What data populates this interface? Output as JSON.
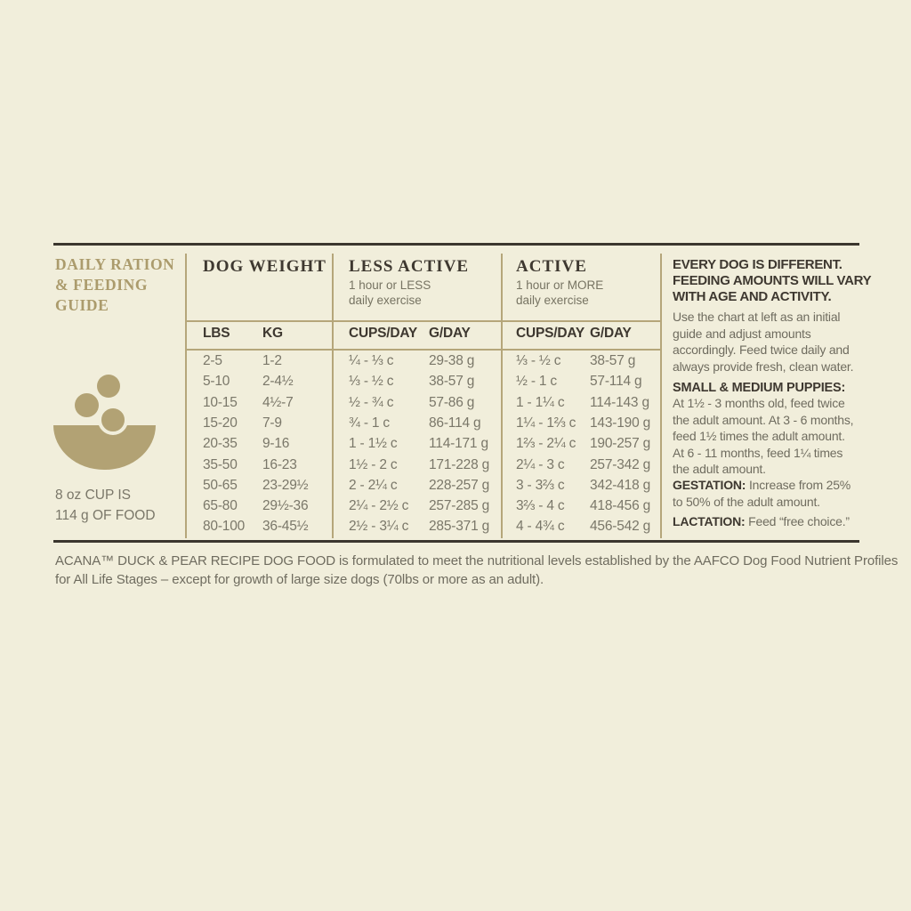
{
  "colors": {
    "background": "#f1eedb",
    "gold": "#ab9b6c",
    "gold_line": "#b5a67a",
    "dark": "#3e3830",
    "body_gray": "#7a7769"
  },
  "left_panel": {
    "title_lines": [
      "DAILY RATION",
      "& FEEDING",
      "GUIDE"
    ],
    "bowl_icon": "kibble-bowl-icon",
    "cup_note_lines": [
      "8 oz CUP IS",
      "114 g OF FOOD"
    ]
  },
  "table": {
    "groups": {
      "dog_weight": {
        "label": "DOG WEIGHT",
        "sub1": "LBS",
        "sub2": "KG"
      },
      "less_active": {
        "label": "LESS ACTIVE",
        "note_lines": [
          "1 hour or LESS",
          "daily exercise"
        ],
        "sub1": "CUPS/DAY",
        "sub2": "G/DAY"
      },
      "active": {
        "label": "ACTIVE",
        "note_lines": [
          "1 hour or MORE",
          "daily exercise"
        ],
        "sub1": "CUPS/DAY",
        "sub2": "G/DAY"
      }
    },
    "rows": [
      {
        "lbs": "2-5",
        "kg": "1-2",
        "la_cups": "¼ - ⅓ c",
        "la_g": "29-38 g",
        "a_cups": "⅓ - ½ c",
        "a_g": "38-57 g"
      },
      {
        "lbs": "5-10",
        "kg": "2-4½",
        "la_cups": "⅓ - ½ c",
        "la_g": "38-57 g",
        "a_cups": "½ - 1 c",
        "a_g": "57-114 g"
      },
      {
        "lbs": "10-15",
        "kg": "4½-7",
        "la_cups": "½ - ¾ c",
        "la_g": "57-86 g",
        "a_cups": "1 - 1¼ c",
        "a_g": "114-143 g"
      },
      {
        "lbs": "15-20",
        "kg": "7-9",
        "la_cups": "¾ - 1 c",
        "la_g": "86-114 g",
        "a_cups": "1¼ - 1⅔ c",
        "a_g": "143-190 g"
      },
      {
        "lbs": "20-35",
        "kg": "9-16",
        "la_cups": "1 - 1½ c",
        "la_g": "114-171 g",
        "a_cups": "1⅔ - 2¼ c",
        "a_g": "190-257 g"
      },
      {
        "lbs": "35-50",
        "kg": "16-23",
        "la_cups": "1½ - 2 c",
        "la_g": "171-228 g",
        "a_cups": "2¼ - 3 c",
        "a_g": "257-342 g"
      },
      {
        "lbs": "50-65",
        "kg": "23-29½",
        "la_cups": "2 - 2¼ c",
        "la_g": "228-257 g",
        "a_cups": "3 - 3⅔ c",
        "a_g": "342-418 g"
      },
      {
        "lbs": "65-80",
        "kg": "29½-36",
        "la_cups": "2¼ - 2½ c",
        "la_g": "257-285 g",
        "a_cups": "3⅔ - 4 c",
        "a_g": "418-456 g"
      },
      {
        "lbs": "80-100",
        "kg": "36-45½",
        "la_cups": "2½ - 3¼ c",
        "la_g": "285-371 g",
        "a_cups": "4 - 4¾ c",
        "a_g": "456-542 g"
      }
    ]
  },
  "info_panel": {
    "heading_lines": [
      "EVERY DOG IS DIFFERENT.",
      "FEEDING AMOUNTS WILL VARY",
      "WITH AGE AND ACTIVITY."
    ],
    "intro_lines": [
      "Use the chart at left as an initial",
      "guide and adjust amounts",
      "accordingly. Feed twice daily and",
      "always provide fresh, clean water."
    ],
    "puppies_label": "SMALL & MEDIUM PUPPIES:",
    "puppies_lines": [
      "At 1½ - 3 months old, feed twice",
      "the adult amount. At 3 - 6 months,",
      "feed 1½ times the adult amount.",
      "At 6 - 11 months, feed 1¼ times",
      "the adult amount."
    ],
    "gestation_label": "GESTATION:",
    "gestation_text": " Increase from 25% to 50% of the adult amount.",
    "lactation_label": "LACTATION:",
    "lactation_text": " Feed “free choice.”"
  },
  "footer": {
    "lines": [
      "ACANA™ DUCK & PEAR RECIPE DOG FOOD is formulated to meet the nutritional levels established by the AAFCO Dog Food Nutrient Profiles",
      "for All Life Stages – except for growth of large size dogs (70lbs or more as an adult)."
    ]
  }
}
